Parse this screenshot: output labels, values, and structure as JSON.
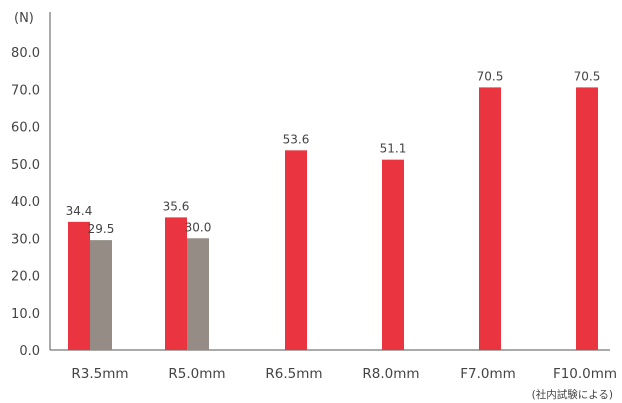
{
  "chart_data": {
    "type": "bar",
    "unit_label": "(N)",
    "categories": [
      "R3.5mm",
      "R5.0mm",
      "R6.5mm",
      "R8.0mm",
      "F7.0mm",
      "F10.0mm"
    ],
    "series": [
      {
        "color": "#ea3540",
        "values": [
          34.4,
          35.6,
          53.6,
          51.1,
          70.5,
          70.5
        ]
      },
      {
        "color": "#958d85",
        "values": [
          29.5,
          30.0,
          null,
          null,
          null,
          null
        ]
      }
    ],
    "data_labels": [
      [
        "34.4",
        "35.6",
        "53.6",
        "51.1",
        "70.5",
        "70.5"
      ],
      [
        "29.5",
        "30.0",
        "",
        "",
        "",
        ""
      ]
    ],
    "yticks": [
      "0.0",
      "10.0",
      "20.0",
      "30.0",
      "40.0",
      "50.0",
      "60.0",
      "70.0",
      "80.0"
    ],
    "ylim": [
      0,
      80
    ],
    "grid": false,
    "footnote": "(社内試験による)"
  }
}
